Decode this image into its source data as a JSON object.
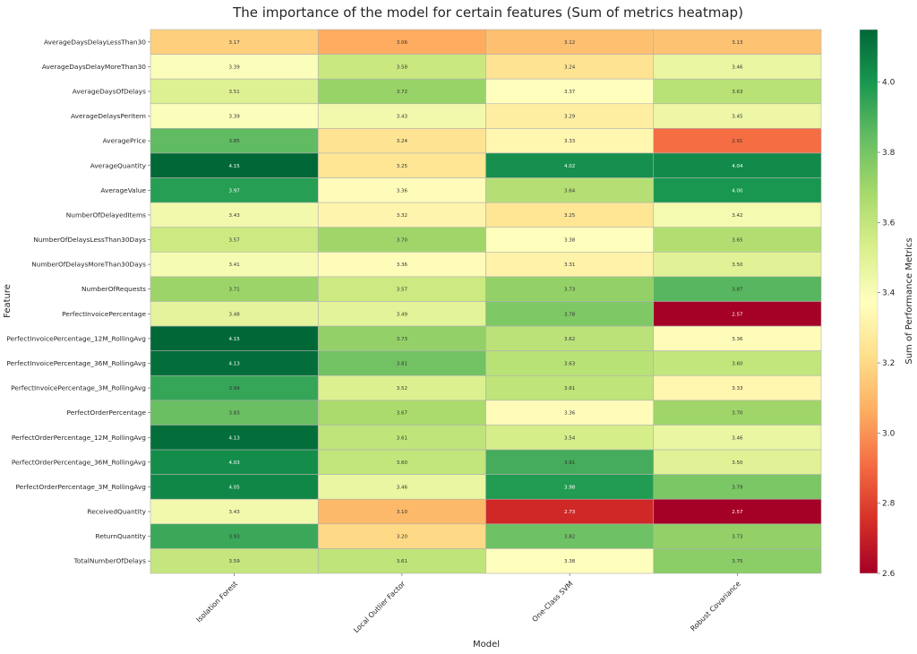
{
  "chart_data": {
    "type": "heatmap",
    "title": "The importance of the model for certain features (Sum of metrics heatmap)",
    "xlabel": "Model",
    "ylabel": "Feature",
    "colorbar_label": "Sum of Performance Metrics",
    "colormap": "RdYlGn",
    "vmin": 2.6,
    "vmax": 4.15,
    "colorbar_ticks": [
      "2.6",
      "2.8",
      "3.0",
      "3.2",
      "3.4",
      "3.6",
      "3.8",
      "4.0"
    ],
    "columns": [
      "Isolation Forest",
      "Local Outlier Factor",
      "One-Class SVM",
      "Robust Covariance"
    ],
    "rows": [
      "AverageDaysDelayLessThan30",
      "AverageDaysDelayMoreThan30",
      "AverageDaysOfDelays",
      "AverageDelaysPerItem",
      "AveragePrice",
      "AverageQuantity",
      "AverageValue",
      "NumberOfDelayedItems",
      "NumberOfDelaysLessThan30Days",
      "NumberOfDelaysMoreThan30Days",
      "NumberOfRequests",
      "PerfectInvoicePercentage",
      "PerfectInvoicePercentage_12M_RollingAvg",
      "PerfectInvoicePercentage_36M_RollingAvg",
      "PerfectInvoicePercentage_3M_RollingAvg",
      "PerfectOrderPercentage",
      "PerfectOrderPercentage_12M_RollingAvg",
      "PerfectOrderPercentage_36M_RollingAvg",
      "PerfectOrderPercentage_3M_RollingAvg",
      "ReceivedQuantity",
      "ReturnQuantity",
      "TotalNumberOfDelays"
    ],
    "values": [
      [
        3.17,
        3.06,
        3.12,
        3.13
      ],
      [
        3.39,
        3.58,
        3.24,
        3.46
      ],
      [
        3.51,
        3.72,
        3.37,
        3.63
      ],
      [
        3.39,
        3.43,
        3.29,
        3.45
      ],
      [
        3.85,
        3.24,
        3.33,
        2.91
      ],
      [
        4.15,
        3.25,
        4.02,
        4.04
      ],
      [
        3.97,
        3.36,
        3.64,
        4.0
      ],
      [
        3.43,
        3.32,
        3.25,
        3.42
      ],
      [
        3.57,
        3.7,
        3.38,
        3.65
      ],
      [
        3.41,
        3.36,
        3.31,
        3.5
      ],
      [
        3.71,
        3.57,
        3.73,
        3.87
      ],
      [
        3.48,
        3.49,
        3.78,
        2.57
      ],
      [
        4.15,
        3.73,
        3.62,
        3.36
      ],
      [
        4.13,
        3.81,
        3.63,
        3.6
      ],
      [
        3.94,
        3.52,
        3.61,
        3.33
      ],
      [
        3.83,
        3.67,
        3.36,
        3.7
      ],
      [
        4.13,
        3.61,
        3.54,
        3.46
      ],
      [
        4.03,
        3.6,
        3.91,
        3.5
      ],
      [
        4.05,
        3.46,
        3.98,
        3.79
      ],
      [
        3.43,
        3.1,
        2.73,
        2.57
      ],
      [
        3.93,
        3.2,
        3.82,
        3.73
      ],
      [
        3.59,
        3.61,
        3.38,
        3.75
      ]
    ],
    "value_labels": [
      [
        "3.17",
        "3.06",
        "3.12",
        "3.13"
      ],
      [
        "3.39",
        "3.58",
        "3.24",
        "3.46"
      ],
      [
        "3.51",
        "3.72",
        "3.37",
        "3.63"
      ],
      [
        "3.39",
        "3.43",
        "3.29",
        "3.45"
      ],
      [
        "3.85",
        "3.24",
        "3.33",
        "2.91"
      ],
      [
        "4.15",
        "3.25",
        "4.02",
        "4.04"
      ],
      [
        "3.97",
        "3.36",
        "3.64",
        "4.00"
      ],
      [
        "3.43",
        "3.32",
        "3.25",
        "3.42"
      ],
      [
        "3.57",
        "3.70",
        "3.38",
        "3.65"
      ],
      [
        "3.41",
        "3.36",
        "3.31",
        "3.50"
      ],
      [
        "3.71",
        "3.57",
        "3.73",
        "3.87"
      ],
      [
        "3.48",
        "3.49",
        "3.78",
        "2.57"
      ],
      [
        "4.15",
        "3.73",
        "3.62",
        "3.36"
      ],
      [
        "4.13",
        "3.81",
        "3.63",
        "3.60"
      ],
      [
        "3.94",
        "3.52",
        "3.61",
        "3.33"
      ],
      [
        "3.83",
        "3.67",
        "3.36",
        "3.70"
      ],
      [
        "4.13",
        "3.61",
        "3.54",
        "3.46"
      ],
      [
        "4.03",
        "3.60",
        "3.91",
        "3.50"
      ],
      [
        "4.05",
        "3.46",
        "3.98",
        "3.79"
      ],
      [
        "3.43",
        "3.10",
        "2.73",
        "2.57"
      ],
      [
        "3.93",
        "3.20",
        "3.82",
        "3.73"
      ],
      [
        "3.59",
        "3.61",
        "3.38",
        "3.75"
      ]
    ]
  }
}
